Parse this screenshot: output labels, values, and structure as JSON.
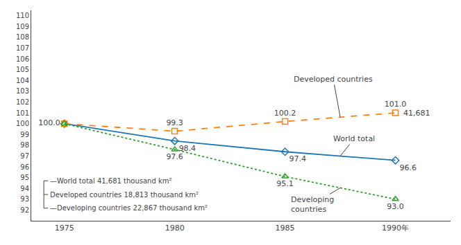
{
  "chart_data": {
    "type": "line",
    "x": [
      1975,
      1980,
      1985,
      1990
    ],
    "series": [
      {
        "name": "World total",
        "values": [
          100.0,
          98.4,
          97.4,
          96.6
        ],
        "value_labels": [
          "100.0",
          "98.4",
          "97.4",
          "96.6"
        ],
        "marker": "diamond",
        "line_style": "solid"
      },
      {
        "name": "Developed countries",
        "values": [
          100.0,
          99.3,
          100.2,
          101.0
        ],
        "value_labels": [
          null,
          "99.3",
          "100.2",
          "101.0"
        ],
        "marker": "square",
        "line_style": "dashed"
      },
      {
        "name": "Developing\ncountries",
        "values": [
          100.0,
          97.6,
          95.1,
          93.0
        ],
        "value_labels": [
          null,
          "97.6",
          "95.1",
          "93.0"
        ],
        "marker": "triangle-up",
        "line_style": "dotted"
      }
    ],
    "data_labels": true,
    "annotations": [
      {
        "text": "41,681",
        "x": 1990,
        "y": 101.0
      },
      {
        "text": "—World total 41,681 thousand km²"
      },
      {
        "text": "Developed countries 18,813 thousand km²"
      },
      {
        "text": "—Developing countries 22,867 thousand km²"
      }
    ],
    "xlim": [
      1973.5,
      1992.5
    ],
    "xticks": [
      1975,
      1980,
      1985,
      {
        "value": 1990,
        "label": "1990年"
      }
    ],
    "ylim": [
      91.0,
      110.5
    ],
    "yticks": [
      92,
      93,
      94,
      95,
      96,
      97,
      98,
      99,
      100,
      101,
      102,
      103,
      104,
      105,
      106,
      107,
      108,
      109,
      110
    ],
    "grid": false
  }
}
